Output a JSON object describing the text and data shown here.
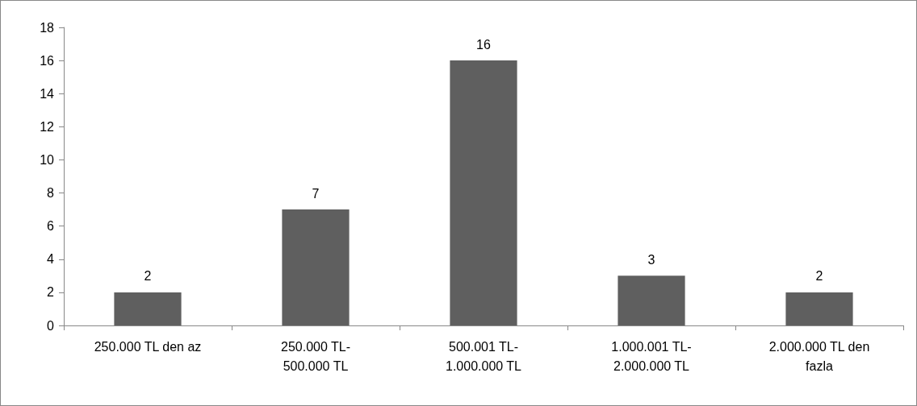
{
  "chart_data": {
    "type": "bar",
    "categories": [
      "250.000 TL den az",
      "250.000 TL-\n500.000 TL",
      "500.001 TL-\n1.000.000 TL",
      "1.000.001 TL-\n2.000.000 TL",
      "2.000.000 TL den\nfazla"
    ],
    "values": [
      2,
      7,
      16,
      3,
      2
    ],
    "color": "#5f5f5f",
    "ylim": [
      0,
      18
    ],
    "yticks": [
      0,
      2,
      4,
      6,
      8,
      10,
      12,
      14,
      16,
      18
    ],
    "grid": false,
    "data_labels": true
  }
}
